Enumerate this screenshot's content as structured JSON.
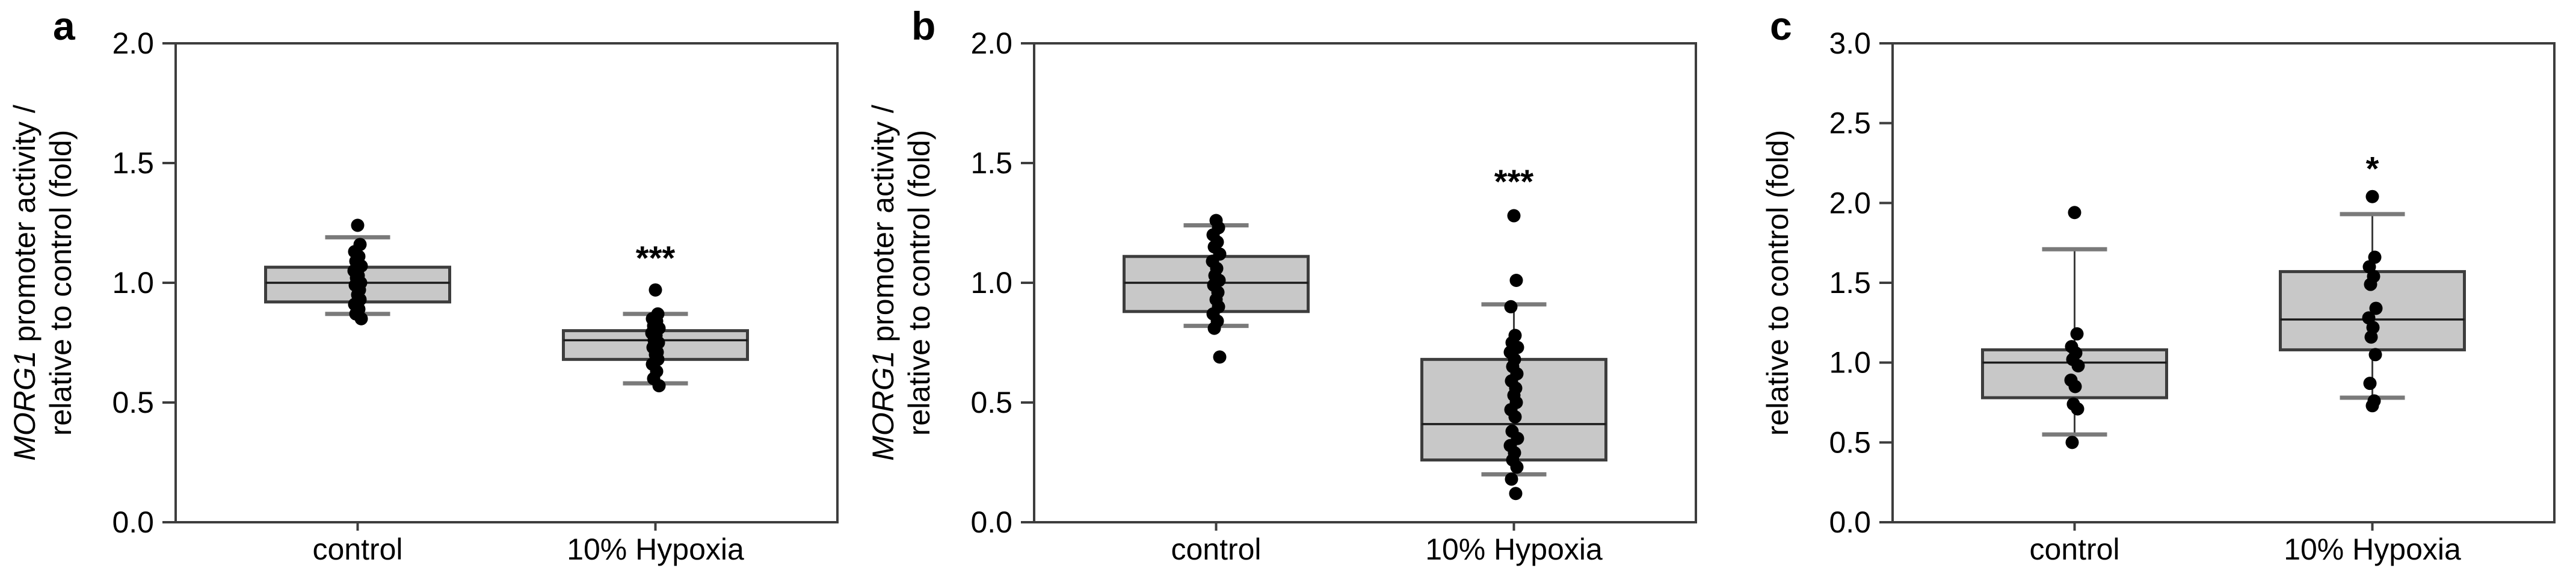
{
  "figure": {
    "background": "#ffffff",
    "description": "Three-panel box plot figure comparing control vs 10% Hypoxia"
  },
  "style": {
    "box_fill": "#c8c8c8",
    "box_stroke": "#3d3d3d",
    "median_color": "#1a1a1a",
    "whisker_color": "#3d3d3d",
    "cap_color": "#7a7a7a",
    "point_color": "#000000",
    "axis_color": "#3d3d3d",
    "text_color": "#000000"
  },
  "chart_data": [
    {
      "type": "box",
      "panel_label": "a",
      "ylabel": {
        "lines": [
          {
            "italic": "MORG1",
            "rest": " promoter activity /"
          },
          {
            "italic": "",
            "rest": "relative to control (fold)"
          }
        ]
      },
      "ylim": [
        0.0,
        2.0
      ],
      "ytick_step": 0.5,
      "ytick_labels": [
        "0.0",
        "0.5",
        "1.0",
        "1.5",
        "2.0"
      ],
      "categories": [
        "control",
        "10% Hypoxia"
      ],
      "series": [
        {
          "category": "control",
          "box": {
            "q1": 0.92,
            "median": 1.0,
            "q3": 1.065,
            "whisker_low": 0.87,
            "whisker_high": 1.19
          },
          "points": [
            1.24,
            1.16,
            1.13,
            1.11,
            1.09,
            1.07,
            1.05,
            1.03,
            1.02,
            1.0,
            0.99,
            0.97,
            0.95,
            0.93,
            0.91,
            0.89,
            0.87,
            0.85
          ],
          "significance": null
        },
        {
          "category": "10% Hypoxia",
          "box": {
            "q1": 0.68,
            "median": 0.76,
            "q3": 0.8,
            "whisker_low": 0.58,
            "whisker_high": 0.87
          },
          "points": [
            0.97,
            0.87,
            0.85,
            0.84,
            0.82,
            0.81,
            0.79,
            0.78,
            0.76,
            0.75,
            0.73,
            0.71,
            0.7,
            0.68,
            0.66,
            0.63,
            0.6,
            0.57
          ],
          "significance": {
            "text": "***",
            "y": 1.1
          }
        }
      ]
    },
    {
      "type": "box",
      "panel_label": "b",
      "ylabel": {
        "lines": [
          {
            "italic": "MORG1",
            "rest": " promoter activity /"
          },
          {
            "italic": "",
            "rest": "relative to control (fold)"
          }
        ]
      },
      "ylim": [
        0.0,
        2.0
      ],
      "ytick_step": 0.5,
      "ytick_labels": [
        "0.0",
        "0.5",
        "1.0",
        "1.5",
        "2.0"
      ],
      "categories": [
        "control",
        "10% Hypoxia"
      ],
      "series": [
        {
          "category": "control",
          "box": {
            "q1": 0.88,
            "median": 1.0,
            "q3": 1.11,
            "whisker_low": 0.82,
            "whisker_high": 1.24
          },
          "points": [
            1.26,
            1.23,
            1.2,
            1.17,
            1.15,
            1.12,
            1.09,
            1.06,
            1.03,
            1.01,
            0.99,
            0.96,
            0.93,
            0.9,
            0.87,
            0.84,
            0.81,
            0.69
          ],
          "significance": null
        },
        {
          "category": "10% Hypoxia",
          "box": {
            "q1": 0.26,
            "median": 0.41,
            "q3": 0.68,
            "whisker_low": 0.2,
            "whisker_high": 0.91
          },
          "points": [
            1.28,
            1.01,
            0.9,
            0.78,
            0.75,
            0.73,
            0.71,
            0.68,
            0.65,
            0.62,
            0.59,
            0.56,
            0.53,
            0.5,
            0.47,
            0.44,
            0.38,
            0.35,
            0.32,
            0.29,
            0.26,
            0.23,
            0.18,
            0.12
          ],
          "significance": {
            "text": "***",
            "y": 1.42
          }
        }
      ]
    },
    {
      "type": "box",
      "panel_label": "c",
      "ylabel": {
        "lines": [
          {
            "italic": "",
            "rest": "relative to control (fold)"
          }
        ]
      },
      "ylim": [
        0.0,
        3.0
      ],
      "ytick_step": 0.5,
      "ytick_labels": [
        "0.0",
        "0.5",
        "1.0",
        "1.5",
        "2.0",
        "2.5",
        "3.0"
      ],
      "categories": [
        "control",
        "10% Hypoxia"
      ],
      "series": [
        {
          "category": "control",
          "box": {
            "q1": 0.78,
            "median": 1.0,
            "q3": 1.08,
            "whisker_low": 0.55,
            "whisker_high": 1.71
          },
          "points": [
            1.94,
            1.18,
            1.1,
            1.06,
            1.02,
            0.98,
            0.89,
            0.85,
            0.74,
            0.71,
            0.5
          ],
          "significance": null
        },
        {
          "category": "10% Hypoxia",
          "box": {
            "q1": 1.08,
            "median": 1.27,
            "q3": 1.57,
            "whisker_low": 0.78,
            "whisker_high": 1.93
          },
          "points": [
            2.04,
            1.66,
            1.6,
            1.54,
            1.49,
            1.34,
            1.28,
            1.22,
            1.16,
            1.05,
            0.87,
            0.76,
            0.73
          ],
          "significance": {
            "text": "*",
            "y": 2.21
          }
        }
      ]
    }
  ]
}
